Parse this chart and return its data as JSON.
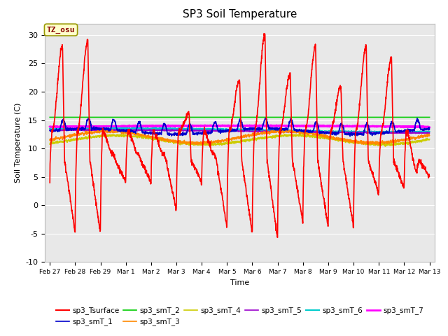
{
  "title": "SP3 Soil Temperature",
  "ylabel": "Soil Temperature (C)",
  "xlabel": "Time",
  "ylim": [
    -10,
    32
  ],
  "background_color": "#e8e8e8",
  "annotation_text": "TZ_osu",
  "annotation_bgcolor": "#ffffcc",
  "annotation_edgecolor": "#999900",
  "annotation_textcolor": "#880000",
  "series": {
    "sp3_Tsurface": {
      "color": "#ff0000",
      "lw": 1.2
    },
    "sp3_smT_1": {
      "color": "#0000cc",
      "lw": 1.2
    },
    "sp3_smT_2": {
      "color": "#00cc00",
      "lw": 1.2
    },
    "sp3_smT_3": {
      "color": "#ff8800",
      "lw": 1.2
    },
    "sp3_smT_4": {
      "color": "#cccc00",
      "lw": 1.2
    },
    "sp3_smT_5": {
      "color": "#9900cc",
      "lw": 1.2
    },
    "sp3_smT_6": {
      "color": "#00cccc",
      "lw": 1.5
    },
    "sp3_smT_7": {
      "color": "#ff00ff",
      "lw": 2.0
    }
  },
  "xtick_labels": [
    "Feb 27",
    "Feb 28",
    "Feb 29",
    "Mar 1",
    "Mar 2",
    "Mar 3",
    "Mar 4",
    "Mar 5",
    "Mar 6",
    "Mar 7",
    "Mar 8",
    "Mar 9",
    "Mar 10",
    "Mar 11",
    "Mar 12",
    "Mar 13"
  ],
  "ytick_labels": [
    "-10",
    "-5",
    "0",
    "5",
    "10",
    "15",
    "20",
    "25",
    "30"
  ],
  "ytick_positions": [
    -10,
    -5,
    0,
    5,
    10,
    15,
    20,
    25,
    30
  ],
  "figsize": [
    6.4,
    4.8
  ],
  "dpi": 100
}
